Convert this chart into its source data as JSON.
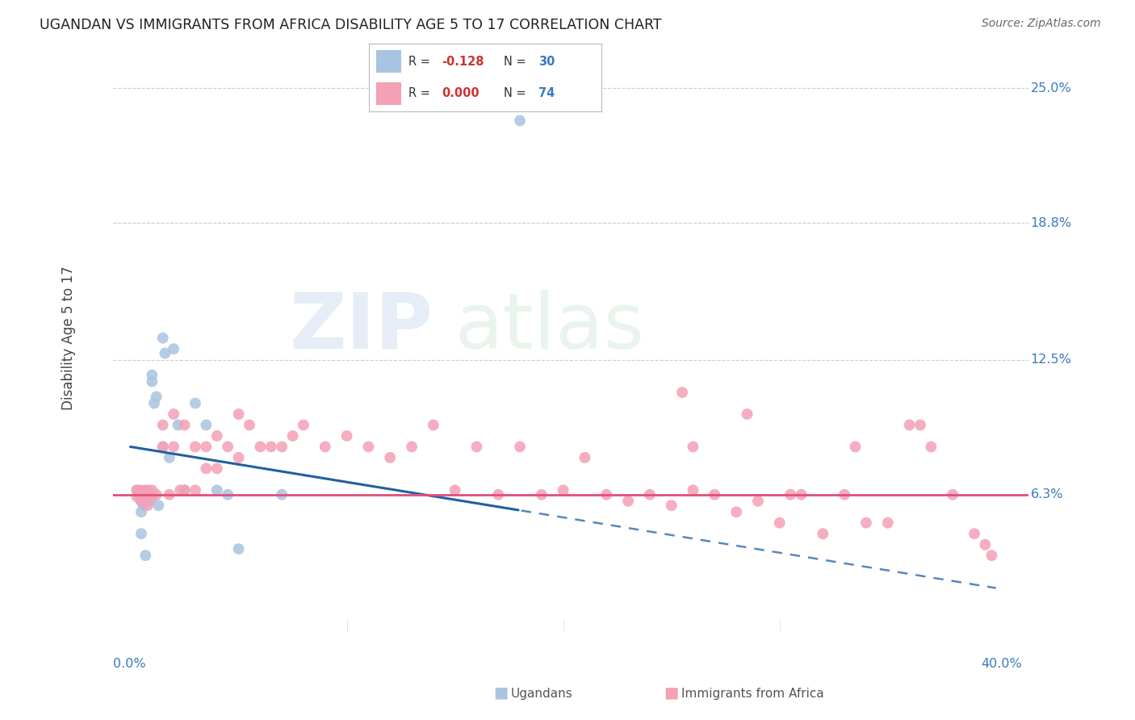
{
  "title": "UGANDAN VS IMMIGRANTS FROM AFRICA DISABILITY AGE 5 TO 17 CORRELATION CHART",
  "source": "Source: ZipAtlas.com",
  "ylabel": "Disability Age 5 to 17",
  "ytick_labels": [
    "6.3%",
    "12.5%",
    "18.8%",
    "25.0%"
  ],
  "ytick_values": [
    6.3,
    12.5,
    18.8,
    25.0
  ],
  "xlim": [
    0.0,
    40.0
  ],
  "ylim": [
    0.0,
    27.0
  ],
  "ugandan_color": "#a8c4e0",
  "immigrant_color": "#f4a0b5",
  "line_ugandan_color": "#2060a0",
  "line_immigrant_color": "#e0507a",
  "ugandan_x": [
    0.3,
    0.4,
    0.5,
    0.5,
    0.5,
    0.6,
    0.6,
    0.7,
    0.7,
    0.8,
    0.9,
    1.0,
    1.0,
    1.1,
    1.2,
    1.3,
    1.5,
    1.5,
    1.6,
    1.8,
    2.0,
    2.2,
    2.5,
    3.0,
    3.5,
    4.0,
    4.5,
    5.0,
    7.0,
    18.0
  ],
  "ugandan_y": [
    6.5,
    6.3,
    5.5,
    6.0,
    4.5,
    6.3,
    5.8,
    6.5,
    3.5,
    6.3,
    6.0,
    11.5,
    11.8,
    10.5,
    10.8,
    5.8,
    13.5,
    8.5,
    12.8,
    8.0,
    13.0,
    9.5,
    6.5,
    10.5,
    9.5,
    6.5,
    6.3,
    3.8,
    6.3,
    23.5
  ],
  "immigrant_x": [
    0.3,
    0.3,
    0.4,
    0.5,
    0.5,
    0.6,
    0.7,
    0.8,
    0.8,
    1.0,
    1.0,
    1.2,
    1.5,
    1.5,
    1.8,
    2.0,
    2.0,
    2.3,
    2.5,
    2.5,
    3.0,
    3.0,
    3.5,
    3.5,
    4.0,
    4.0,
    4.5,
    5.0,
    5.0,
    5.5,
    6.0,
    6.5,
    7.0,
    7.5,
    8.0,
    9.0,
    10.0,
    11.0,
    12.0,
    13.0,
    14.0,
    15.0,
    16.0,
    17.0,
    18.0,
    19.0,
    20.0,
    21.0,
    22.0,
    23.0,
    24.0,
    25.0,
    26.0,
    27.0,
    28.0,
    29.0,
    30.0,
    31.0,
    32.0,
    33.0,
    34.0,
    35.0,
    36.0,
    37.0,
    38.0,
    39.0,
    39.5,
    25.5,
    28.5,
    33.5,
    36.5,
    39.8,
    26.0,
    30.5
  ],
  "immigrant_y": [
    6.5,
    6.2,
    6.3,
    6.5,
    6.0,
    6.3,
    6.3,
    6.5,
    5.8,
    6.5,
    6.2,
    6.3,
    9.5,
    8.5,
    6.3,
    10.0,
    8.5,
    6.5,
    9.5,
    6.5,
    8.5,
    6.5,
    8.5,
    7.5,
    9.0,
    7.5,
    8.5,
    10.0,
    8.0,
    9.5,
    8.5,
    8.5,
    8.5,
    9.0,
    9.5,
    8.5,
    9.0,
    8.5,
    8.0,
    8.5,
    9.5,
    6.5,
    8.5,
    6.3,
    8.5,
    6.3,
    6.5,
    8.0,
    6.3,
    6.0,
    6.3,
    5.8,
    8.5,
    6.3,
    5.5,
    6.0,
    5.0,
    6.3,
    4.5,
    6.3,
    5.0,
    5.0,
    9.5,
    8.5,
    6.3,
    4.5,
    4.0,
    11.0,
    10.0,
    8.5,
    9.5,
    3.5,
    6.5,
    6.3
  ]
}
